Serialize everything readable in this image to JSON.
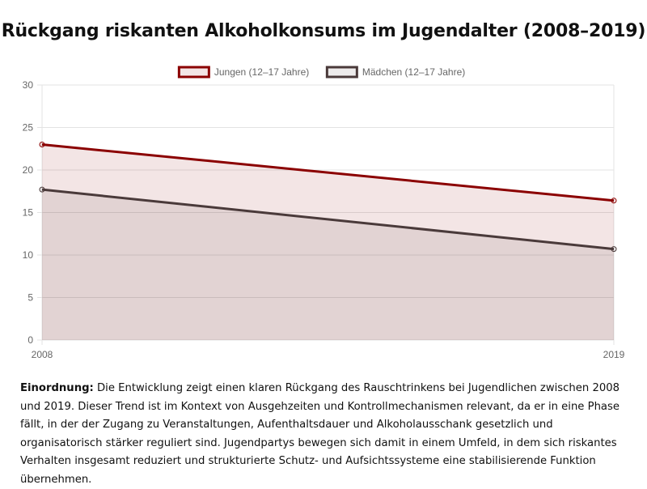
{
  "title": "Rückgang riskanten Alkoholkonsums im Jugendalter (2008–2019)",
  "note": {
    "label": "Einordnung:",
    "text": "Die Entwicklung zeigt einen klaren Rückgang des Rauschtrinkens bei Jugendlichen zwischen 2008 und 2019. Dieser Trend ist im Kontext von Ausgehzeiten und Kontrollmechanismen relevant, da er in eine Phase fällt, in der der Zugang zu Veranstaltungen, Aufenthaltsdauer und Alkoholausschank gesetzlich und organisatorisch stärker reguliert sind. Jugendpartys bewegen sich damit in einem Umfeld, in dem sich riskantes Verhalten insgesamt reduziert und strukturierte Schutz- und Aufsichtssysteme eine stabilisierende Funktion übernehmen."
  },
  "chart_data": {
    "type": "area",
    "x": [
      "2008",
      "2019"
    ],
    "series": [
      {
        "name": "Jungen (12–17 Jahre)",
        "values": [
          23.0,
          16.4
        ],
        "color": "#8b0000",
        "fill": "rgba(139,0,0,0.10)"
      },
      {
        "name": "Mädchen (12–17 Jahre)",
        "values": [
          17.7,
          10.7
        ],
        "color": "#4a3a3a",
        "fill": "rgba(74,58,58,0.10)"
      }
    ],
    "ylim": [
      0,
      30
    ],
    "yticks": [
      0,
      5,
      10,
      15,
      20,
      25,
      30
    ],
    "grid": true,
    "legend": "top"
  }
}
